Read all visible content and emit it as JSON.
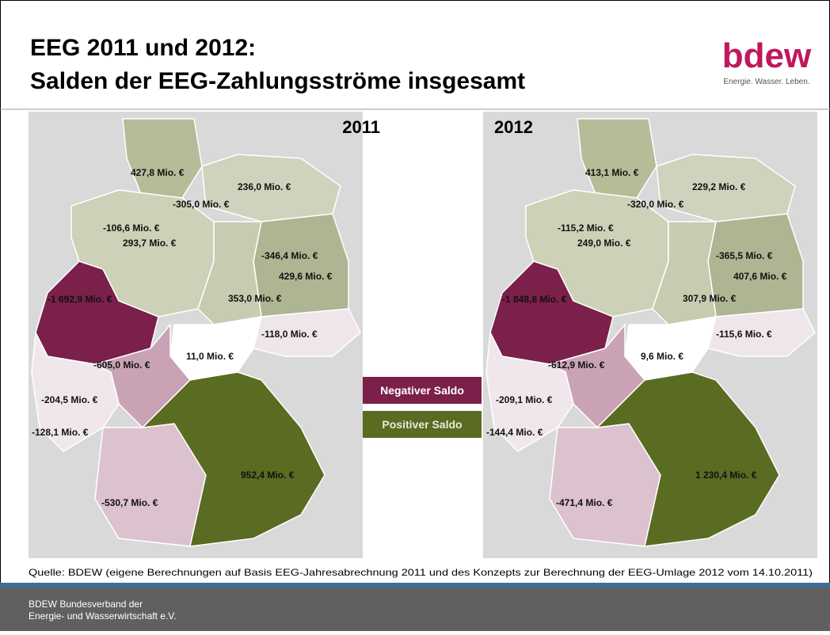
{
  "header": {
    "title_line1": "EEG 2011 und 2012:",
    "title_line2": "Salden der EEG-Zahlungsströme insgesamt",
    "logo": "bdew",
    "logo_tagline": "Energie. Wasser. Leben."
  },
  "maps": [
    {
      "year": "2011",
      "regions": [
        "427,8 Mio. €",
        "236,0 Mio. €",
        "-305,0 Mio. €",
        "-106,6 Mio. €",
        "293,7 Mio. €",
        "-346,4 Mio. €",
        "429,6 Mio. €",
        "353,0 Mio. €",
        "-1 692,9 Mio. €",
        "-118,0 Mio. €",
        "-605,0 Mio. €",
        "11,0 Mio. €",
        "-204,5 Mio. €",
        "-128,1 Mio. €",
        "952,4 Mio. €",
        "-530,7 Mio. €"
      ]
    },
    {
      "year": "2012",
      "regions": [
        "413,1 Mio. €",
        "229,2 Mio. €",
        "-320,0 Mio. €",
        "-115,2 Mio. €",
        "249,0 Mio. €",
        "-365,5 Mio. €",
        "407,6 Mio. €",
        "307,9 Mio. €",
        "-1 848,8 Mio. €",
        "-115,6 Mio. €",
        "-612,9 Mio. €",
        "9,6 Mio. €",
        "-209,1 Mio. €",
        "-144,4 Mio. €",
        "1 230,4 Mio. €",
        "-471,4 Mio. €"
      ]
    }
  ],
  "legend": {
    "negative": "Negativer Saldo",
    "positive": "Positiver Saldo"
  },
  "source": "Quelle: BDEW (eigene Berechnungen auf Basis EEG-Jahresabrechnung 2011 und des Konzepts zur Berechnung der EEG-Umlage 2012 vom 14.10.2011)",
  "footer": {
    "line1": "BDEW Bundesverband der",
    "line2": "Energie- und Wasserwirtschaft e.V."
  }
}
